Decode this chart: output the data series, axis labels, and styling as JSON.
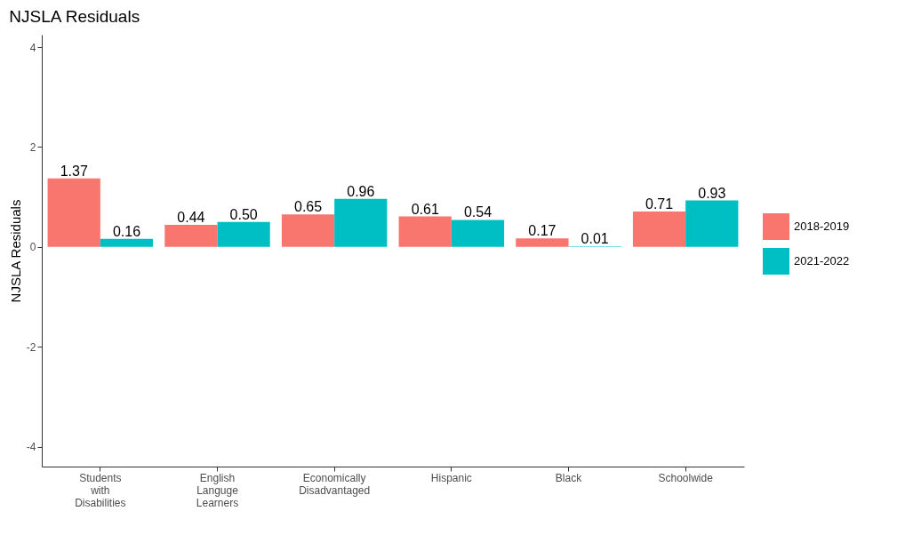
{
  "chart_data": {
    "type": "bar",
    "title": "NJSLA Residuals",
    "ylabel": "NJSLA Residuals",
    "categories": [
      "Students with Disabilities",
      "English Languge Learners",
      "Economically Disadvantaged",
      "Hispanic",
      "Black",
      "Schoolwide"
    ],
    "series": [
      {
        "name": "2018-2019",
        "color": "#f8766d",
        "values": [
          1.37,
          0.44,
          0.65,
          0.61,
          0.17,
          0.71
        ],
        "value_labels": [
          "1.37",
          "0.44",
          "0.65",
          "0.61",
          "0.17",
          "0.71"
        ]
      },
      {
        "name": "2021-2022",
        "color": "#00bfc4",
        "values": [
          0.16,
          0.5,
          0.96,
          0.54,
          0.01,
          0.93
        ],
        "value_labels": [
          "0.16",
          "0.50",
          "0.96",
          "0.54",
          "0.01",
          "0.93"
        ]
      }
    ],
    "ylim": [
      -4.4,
      4.25
    ],
    "yticks": [
      -4,
      -2,
      0,
      2,
      4
    ],
    "grid": false,
    "legend": "right"
  }
}
